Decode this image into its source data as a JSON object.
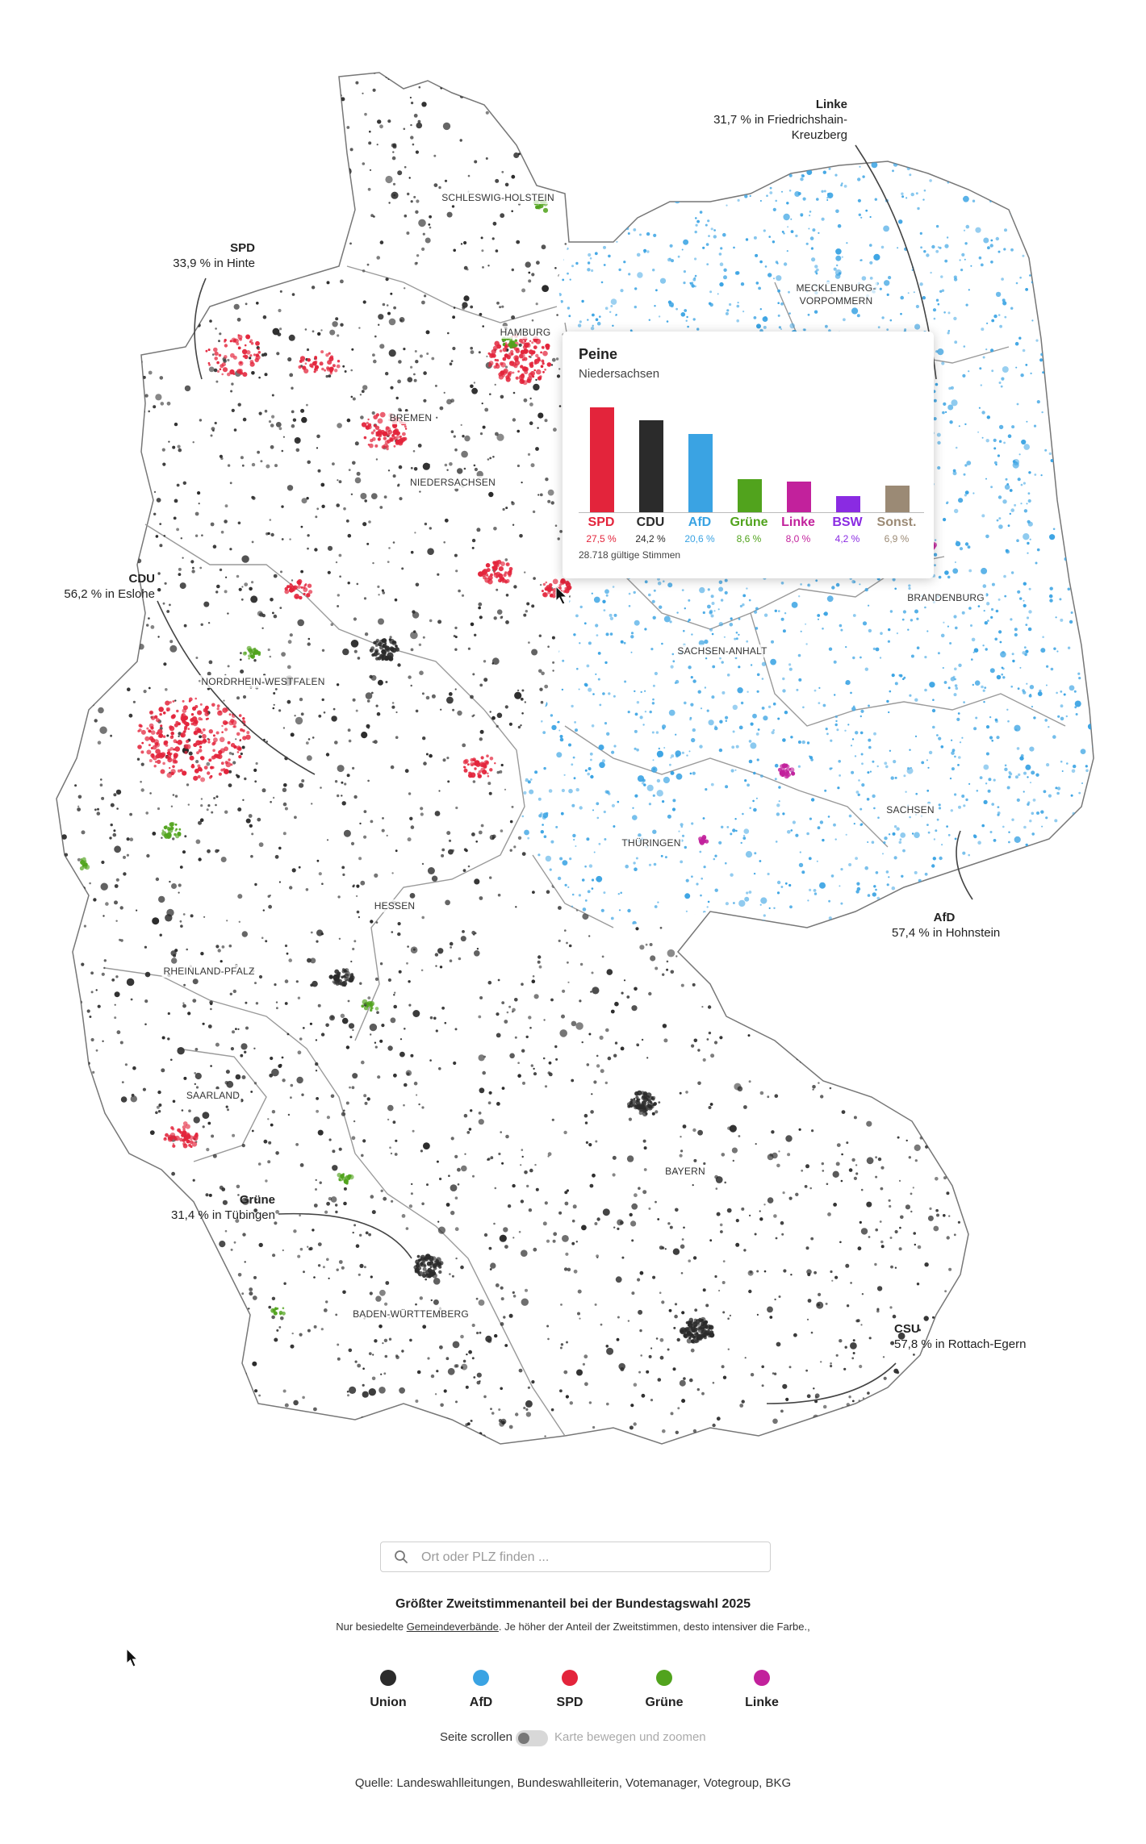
{
  "colors": {
    "union": "#2b2b2b",
    "afd": "#3aa3e3",
    "spd": "#e3243b",
    "gruene": "#51a31d",
    "linke": "#c2219c",
    "bsw": "#8a2be2",
    "sonst": "#9b8a75"
  },
  "map": {
    "state_labels": [
      {
        "id": "sh",
        "text": "SCHLESWIG-HOLSTEIN"
      },
      {
        "id": "hh",
        "text": "HAMBURG"
      },
      {
        "id": "mv1",
        "text": "MECKLENBURG-"
      },
      {
        "id": "mv2",
        "text": "VORPOMMERN"
      },
      {
        "id": "hb",
        "text": "BREMEN"
      },
      {
        "id": "ni",
        "text": "NIEDERSACHSEN"
      },
      {
        "id": "bb",
        "text": "BRANDENBURG"
      },
      {
        "id": "st",
        "text": "SACHSEN-ANHALT"
      },
      {
        "id": "nw",
        "text": "NORDRHEIN-WESTFALEN"
      },
      {
        "id": "sn",
        "text": "SACHSEN"
      },
      {
        "id": "th",
        "text": "THÜRINGEN"
      },
      {
        "id": "he",
        "text": "HESSEN"
      },
      {
        "id": "rp",
        "text": "RHEINLAND-PFALZ"
      },
      {
        "id": "sl",
        "text": "SAARLAND"
      },
      {
        "id": "by",
        "text": "BAYERN"
      },
      {
        "id": "bw",
        "text": "BADEN-WÜRTTEMBERG"
      }
    ],
    "annotations": [
      {
        "id": "linke",
        "party": "Linke",
        "line1": "31,7 % in Friedrichshain-",
        "line2": "Kreuzberg"
      },
      {
        "id": "spd",
        "party": "SPD",
        "line1": "33,9 % in Hinte",
        "line2": ""
      },
      {
        "id": "cdu",
        "party": "CDU",
        "line1": "56,2 % in Eslohe",
        "line2": ""
      },
      {
        "id": "afd",
        "party": "AfD",
        "line1": "57,4 % in Hohnstein",
        "line2": ""
      },
      {
        "id": "gruene",
        "party": "Grüne",
        "line1": "31,4 % in Tübingen",
        "line2": ""
      },
      {
        "id": "csu",
        "party": "CSU",
        "line1": "57,8 % in Rottach-Egern",
        "line2": ""
      }
    ]
  },
  "tooltip": {
    "title": "Peine",
    "subtitle": "Niedersachsen",
    "footer": "28.718 gültige Stimmen"
  },
  "chart_data": {
    "type": "bar",
    "title": "Peine",
    "subtitle": "Niedersachsen",
    "categories": [
      "SPD",
      "CDU",
      "AfD",
      "Grüne",
      "Linke",
      "BSW",
      "Sonst."
    ],
    "values": [
      27.5,
      24.2,
      20.6,
      8.6,
      8.0,
      4.2,
      6.9
    ],
    "value_labels": [
      "27,5 %",
      "24,2 %",
      "20,6 %",
      "8,6 %",
      "8,0 %",
      "4,2 %",
      "6,9 %"
    ],
    "colors": [
      "#e3243b",
      "#2b2b2b",
      "#3aa3e3",
      "#51a31d",
      "#c2219c",
      "#8a2be2",
      "#9b8a75"
    ],
    "ylim": [
      0,
      28
    ]
  },
  "search": {
    "placeholder": "Ort oder PLZ finden ..."
  },
  "legend": {
    "title": "Größter Zweitstimmenanteil bei der Bundestagswahl 2025",
    "desc_before": "Nur besiedelte ",
    "desc_link": "Gemeindeverbände",
    "desc_after": ". Je höher der Anteil der Zweitstimmen, desto intensiver die Farbe.,",
    "items": [
      {
        "label": "Union",
        "color": "#2b2b2b"
      },
      {
        "label": "AfD",
        "color": "#3aa3e3"
      },
      {
        "label": "SPD",
        "color": "#e3243b"
      },
      {
        "label": "Grüne",
        "color": "#51a31d"
      },
      {
        "label": "Linke",
        "color": "#c2219c"
      }
    ]
  },
  "toggle": {
    "left_label": "Seite scrollen",
    "right_label": "Karte bewegen und zoomen"
  },
  "source": "Quelle: Landeswahlleitungen, Bundeswahlleiterin, Votemanager, Votegroup, BKG"
}
